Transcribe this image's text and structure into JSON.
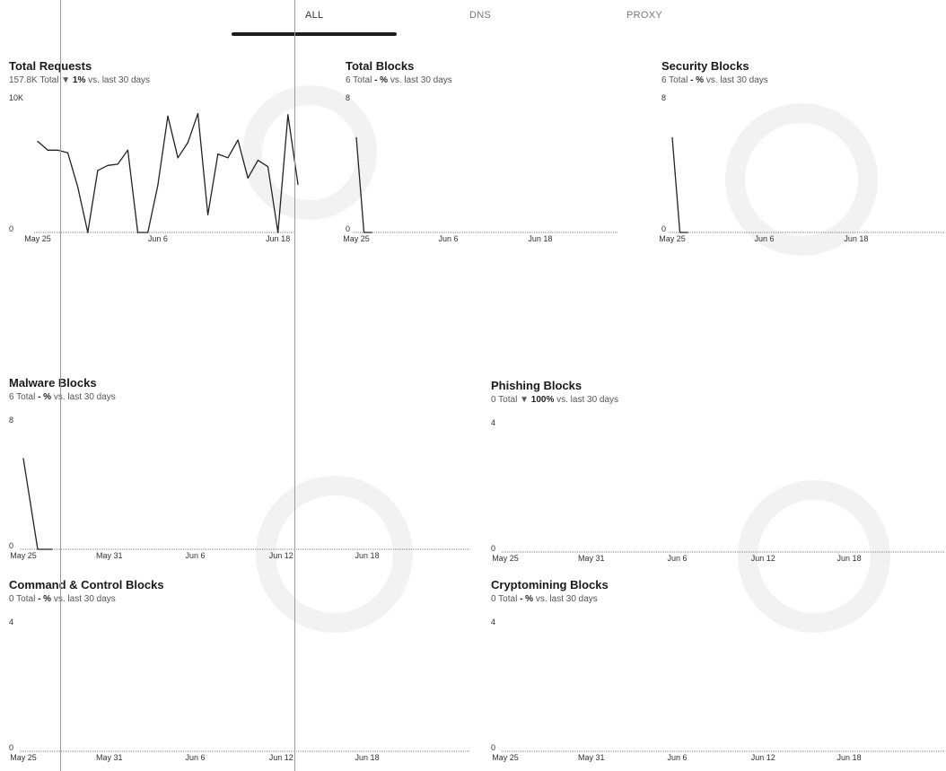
{
  "tabs": [
    {
      "label": "ALL",
      "active": true
    },
    {
      "label": "DNS",
      "active": false
    },
    {
      "label": "PROXY",
      "active": false
    }
  ],
  "colors": {
    "line": "#222222",
    "axis": "#555555",
    "tab_underline": "#1e1e1e"
  },
  "cards": {
    "total_requests": {
      "title": "Total Requests",
      "total": "157.8K",
      "total_suffix": "Total",
      "trend_arrow": "▼",
      "change": "1%",
      "comparison": "vs. last 30 days"
    },
    "total_blocks": {
      "title": "Total Blocks",
      "total": "6",
      "total_suffix": "Total",
      "change": "- %",
      "comparison": "vs. last 30 days"
    },
    "security_blocks": {
      "title": "Security Blocks",
      "total": "6",
      "total_suffix": "Total",
      "change": "- %",
      "comparison": "vs. last 30 days"
    },
    "malware_blocks": {
      "title": "Malware Blocks",
      "total": "6",
      "total_suffix": "Total",
      "change": "- %",
      "comparison": "vs. last 30 days"
    },
    "phishing_blocks": {
      "title": "Phishing Blocks",
      "total": "0",
      "total_suffix": "Total",
      "trend_arrow": "▼",
      "change": "100%",
      "comparison": "vs. last 30 days"
    },
    "c2_blocks": {
      "title": "Command & Control Blocks",
      "total": "0",
      "total_suffix": "Total",
      "change": "- %",
      "comparison": "vs. last 30 days"
    },
    "crypto_blocks": {
      "title": "Cryptomining Blocks",
      "total": "0",
      "total_suffix": "Total",
      "change": "- %",
      "comparison": "vs. last 30 days"
    }
  },
  "chart_data": [
    {
      "id": "total_requests",
      "type": "line",
      "title": "Total Requests",
      "y_ticks": [
        "10K",
        "0"
      ],
      "ylim": [
        0,
        10000
      ],
      "x_ticks": [
        "May 25",
        "Jun 6",
        "Jun 18"
      ],
      "x_tick_index": [
        0,
        12,
        24
      ],
      "x": [
        "May 25",
        "May 26",
        "May 27",
        "May 28",
        "May 29",
        "May 30",
        "May 31",
        "Jun 1",
        "Jun 2",
        "Jun 3",
        "Jun 4",
        "Jun 5",
        "Jun 6",
        "Jun 7",
        "Jun 8",
        "Jun 9",
        "Jun 10",
        "Jun 11",
        "Jun 12",
        "Jun 13",
        "Jun 14",
        "Jun 15",
        "Jun 16",
        "Jun 17",
        "Jun 18",
        "Jun 19",
        "Jun 20"
      ],
      "values": [
        7200,
        6500,
        6500,
        6300,
        3600,
        0,
        4900,
        5300,
        5400,
        6500,
        0,
        0,
        3700,
        9200,
        5900,
        7100,
        9400,
        1400,
        6200,
        5900,
        7300,
        4300,
        5700,
        5200,
        0,
        9300,
        3800
      ]
    },
    {
      "id": "total_blocks",
      "type": "line",
      "title": "Total Blocks",
      "y_ticks": [
        "8",
        "0"
      ],
      "ylim": [
        0,
        8
      ],
      "x_ticks": [
        "May 25",
        "Jun 6",
        "Jun 18"
      ],
      "x_tick_index": [
        0,
        12,
        24
      ],
      "x": [
        "May 25",
        "May 26",
        "May 27"
      ],
      "values": [
        6,
        0,
        0
      ]
    },
    {
      "id": "security_blocks",
      "type": "line",
      "title": "Security Blocks",
      "y_ticks": [
        "8",
        "0"
      ],
      "ylim": [
        0,
        8
      ],
      "x_ticks": [
        "May 25",
        "Jun 6",
        "Jun 18"
      ],
      "x_tick_index": [
        0,
        12,
        24
      ],
      "x": [
        "May 25",
        "May 26",
        "May 27"
      ],
      "values": [
        6,
        0,
        0
      ]
    },
    {
      "id": "malware_blocks",
      "type": "line",
      "title": "Malware Blocks",
      "y_ticks": [
        "8",
        "0"
      ],
      "ylim": [
        0,
        8
      ],
      "x_ticks": [
        "May 25",
        "May 31",
        "Jun 6",
        "Jun 12",
        "Jun 18"
      ],
      "x_tick_index": [
        0,
        6,
        12,
        18,
        24
      ],
      "x": [
        "May 25",
        "May 26",
        "May 27"
      ],
      "values": [
        6,
        0,
        0
      ]
    },
    {
      "id": "phishing_blocks",
      "type": "line",
      "title": "Phishing Blocks",
      "y_ticks": [
        "4",
        "0"
      ],
      "ylim": [
        0,
        4
      ],
      "x_ticks": [
        "May 25",
        "May 31",
        "Jun 6",
        "Jun 12",
        "Jun 18"
      ],
      "x_tick_index": [
        0,
        6,
        12,
        18,
        24
      ],
      "x": [],
      "values": []
    },
    {
      "id": "c2_blocks",
      "type": "line",
      "title": "Command & Control Blocks",
      "y_ticks": [
        "4",
        "0"
      ],
      "ylim": [
        0,
        4
      ],
      "x_ticks": [
        "May 25",
        "May 31",
        "Jun 6",
        "Jun 12",
        "Jun 18"
      ],
      "x_tick_index": [
        0,
        6,
        12,
        18,
        24
      ],
      "x": [],
      "values": []
    },
    {
      "id": "crypto_blocks",
      "type": "line",
      "title": "Cryptomining Blocks",
      "y_ticks": [
        "4",
        "0"
      ],
      "ylim": [
        0,
        4
      ],
      "x_ticks": [
        "May 25",
        "May 31",
        "Jun 6",
        "Jun 12",
        "Jun 18"
      ],
      "x_tick_index": [
        0,
        6,
        12,
        18,
        24
      ],
      "x": [],
      "values": []
    }
  ]
}
